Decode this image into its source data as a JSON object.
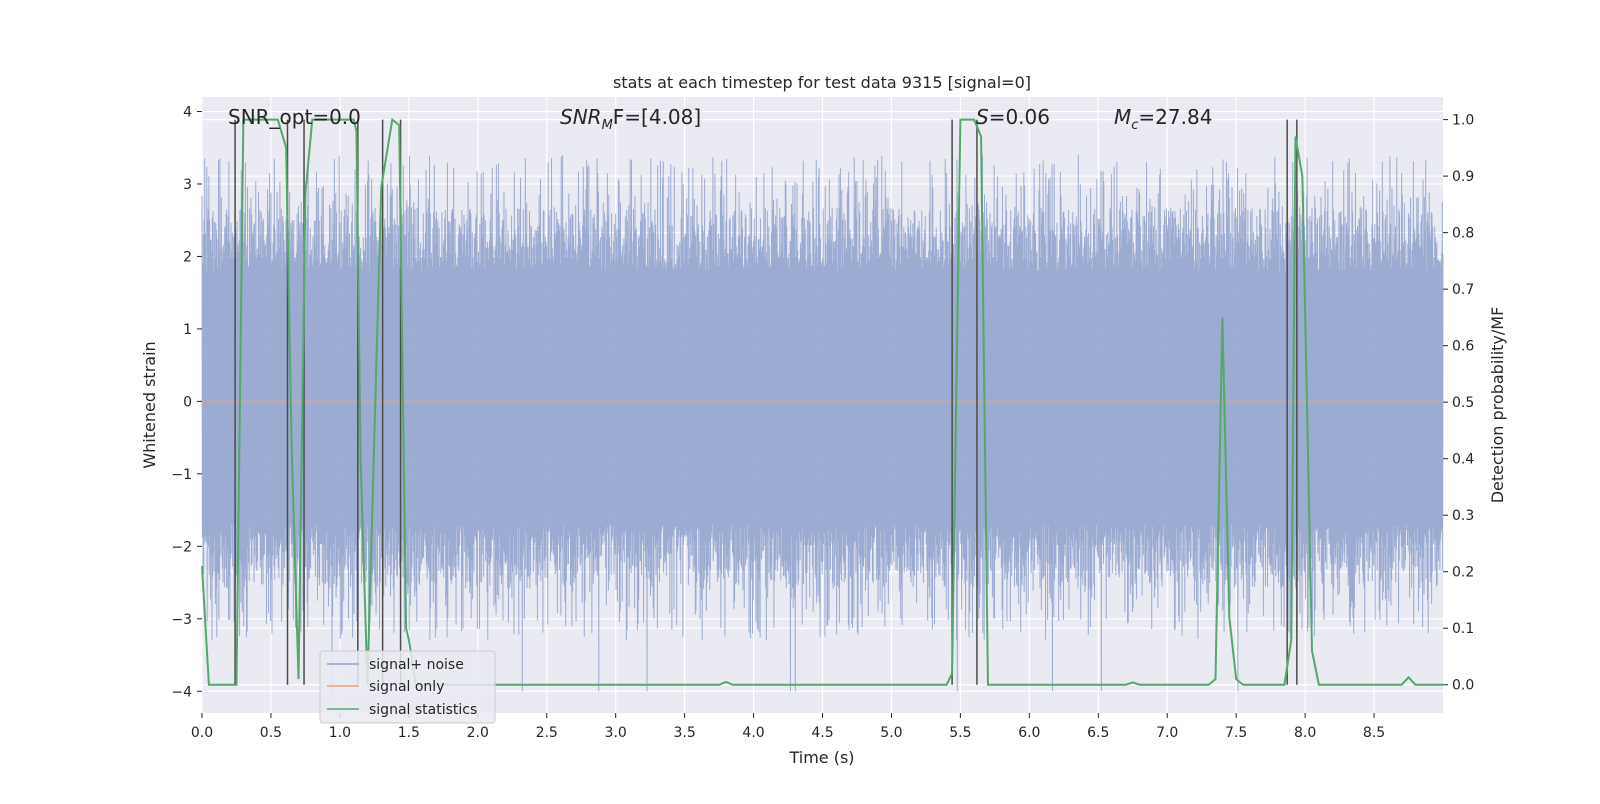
{
  "chart_data": {
    "type": "line",
    "title": "stats at each timestep for test data 9315 [signal=0]",
    "xlabel": "Time (s)",
    "ylabel_left": "Whitened strain",
    "ylabel_right": "Detection probability/MF",
    "xlim": [
      0.0,
      9.0
    ],
    "ylim_left": [
      -4.3,
      4.2
    ],
    "ylim_right": [
      -0.05,
      1.04
    ],
    "x_ticks": [
      0.0,
      0.5,
      1.0,
      1.5,
      2.0,
      2.5,
      3.0,
      3.5,
      4.0,
      4.5,
      5.0,
      5.5,
      6.0,
      6.5,
      7.0,
      7.5,
      8.0,
      8.5
    ],
    "x_tick_labels": [
      "0.0",
      "0.5",
      "1.0",
      "1.5",
      "2.0",
      "2.5",
      "3.0",
      "3.5",
      "4.0",
      "4.5",
      "5.0",
      "5.5",
      "6.0",
      "6.5",
      "7.0",
      "7.5",
      "8.0",
      "8.5"
    ],
    "y_ticks_left": [
      4,
      3,
      2,
      1,
      0,
      -1,
      -2,
      -3,
      -4
    ],
    "y_tick_labels_left": [
      "4",
      "3",
      "2",
      "1",
      "0",
      "−1",
      "−2",
      "−3",
      "−4"
    ],
    "y_ticks_right": [
      1.0,
      0.9,
      0.8,
      0.7,
      0.6,
      0.5,
      0.4,
      0.3,
      0.2,
      0.1,
      0.0
    ],
    "y_tick_labels_right": [
      "1.0",
      "0.9",
      "0.8",
      "0.7",
      "0.6",
      "0.5",
      "0.4",
      "0.3",
      "0.2",
      "0.1",
      "0.0"
    ],
    "annotations": {
      "snr_opt": "SNR_opt=0.0",
      "snr_mf_main": "SNR",
      "snr_mf_sub": "M",
      "snr_mf_rest": "F=[4.08]",
      "s_main": "S",
      "s_rest": "=0.06",
      "mc_main": "M",
      "mc_sub": "c",
      "mc_rest": "=27.84"
    },
    "legend": {
      "position": "lower-left",
      "entries": [
        "signal+ noise",
        "signal only",
        "signal statistics"
      ]
    },
    "colors": {
      "noise": "#8da0cb",
      "signal_only": "#e8a182",
      "statistics": "#55a868",
      "markers": "#4c4c4c",
      "axes_bg": "#eaeaf2",
      "grid": "#ffffff"
    },
    "series": [
      {
        "name": "signal+ noise",
        "axis": "left",
        "style": "dense-noise",
        "t_range": [
          0.0,
          9.0
        ],
        "peak_range": [
          1.8,
          3.4
        ],
        "trough_range": [
          -1.7,
          -3.3
        ],
        "extreme_min": -4.0
      },
      {
        "name": "signal only",
        "axis": "left",
        "x": [
          0.0,
          9.0
        ],
        "y": [
          0.0,
          0.0
        ]
      },
      {
        "name": "signal statistics",
        "axis": "right",
        "x": [
          0.0,
          0.05,
          0.25,
          0.3,
          0.55,
          0.61,
          0.65,
          0.7,
          0.75,
          0.8,
          1.1,
          1.12,
          1.15,
          1.2,
          1.3,
          1.38,
          1.43,
          1.48,
          1.5,
          1.55,
          1.6,
          3.75,
          3.8,
          3.85,
          5.4,
          5.44,
          5.5,
          5.6,
          5.65,
          5.7,
          6.7,
          6.75,
          6.8,
          7.3,
          7.35,
          7.4,
          7.45,
          7.5,
          7.55,
          7.7,
          7.85,
          7.9,
          7.93,
          7.98,
          8.05,
          8.1,
          8.7,
          8.75,
          8.8,
          9.0
        ],
        "y": [
          0.21,
          0.0,
          0.0,
          1.0,
          1.0,
          0.95,
          0.42,
          0.01,
          0.87,
          1.0,
          1.0,
          0.98,
          0.4,
          0.0,
          0.88,
          1.0,
          0.99,
          0.1,
          0.08,
          0.0,
          0.0,
          0.0,
          0.005,
          0.0,
          0.0,
          0.02,
          1.0,
          1.0,
          0.97,
          0.0,
          0.0,
          0.004,
          0.0,
          0.0,
          0.01,
          0.65,
          0.12,
          0.01,
          0.0,
          0.0,
          0.0,
          0.08,
          0.97,
          0.9,
          0.06,
          0.0,
          0.0,
          0.013,
          0.0,
          0.0
        ]
      }
    ],
    "marker_lines_x": [
      0.24,
      0.62,
      0.74,
      1.13,
      1.31,
      1.44,
      5.44,
      5.62,
      7.87,
      7.94
    ]
  }
}
